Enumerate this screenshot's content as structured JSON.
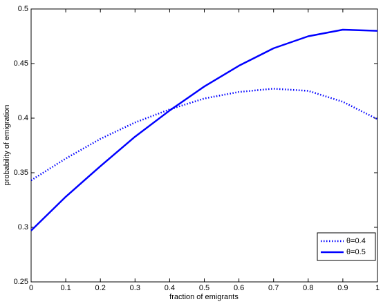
{
  "chart_data": {
    "type": "line",
    "x_label": "fraction of emigrants",
    "y_label": "probability of emigration",
    "x": [
      0,
      0.1,
      0.2,
      0.3,
      0.4,
      0.5,
      0.6,
      0.7,
      0.8,
      0.9,
      1
    ],
    "series": [
      {
        "name": "θ=0.4",
        "color": "#0000ff",
        "style": "dotted",
        "values": [
          0.343,
          0.363,
          0.381,
          0.396,
          0.408,
          0.418,
          0.424,
          0.427,
          0.425,
          0.415,
          0.399
        ]
      },
      {
        "name": "θ=0.5",
        "color": "#0000ff",
        "style": "solid",
        "values": [
          0.297,
          0.328,
          0.356,
          0.383,
          0.407,
          0.429,
          0.448,
          0.464,
          0.475,
          0.481,
          0.48
        ]
      }
    ],
    "xlim": [
      0,
      1
    ],
    "ylim": [
      0.25,
      0.5
    ],
    "xticks": [
      0,
      0.1,
      0.2,
      0.3,
      0.4,
      0.5,
      0.6,
      0.7,
      0.8,
      0.9,
      1
    ],
    "yticks": [
      0.25,
      0.3,
      0.35,
      0.4,
      0.45,
      0.5
    ],
    "legend": "lower right"
  }
}
